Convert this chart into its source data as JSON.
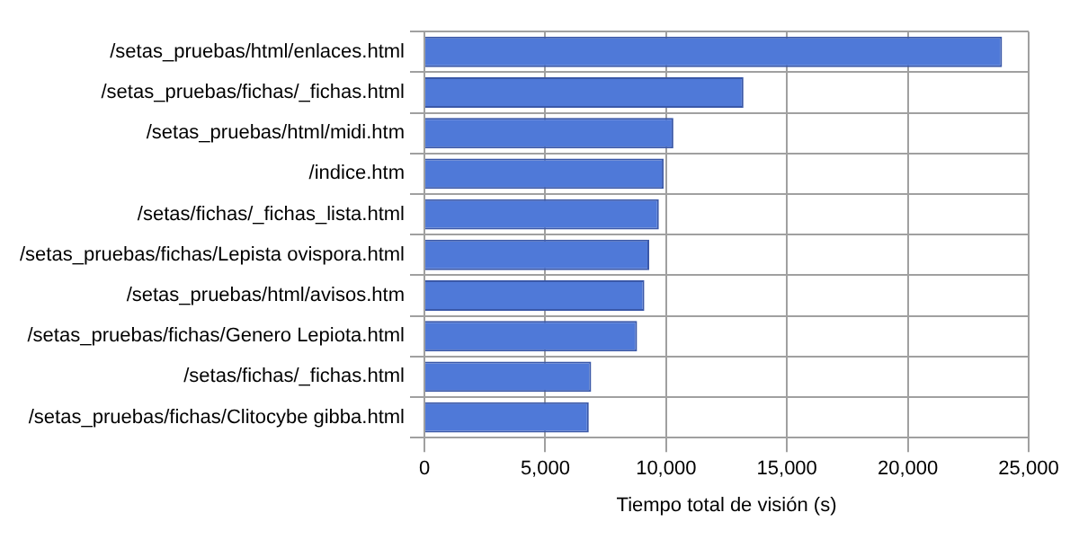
{
  "chart_data": {
    "type": "bar",
    "orientation": "horizontal",
    "xlabel": "Tiempo total de visión (s)",
    "categories": [
      "/setas_pruebas/html/enlaces.html",
      "/setas_pruebas/fichas/_fichas.html",
      "/setas_pruebas/html/midi.htm",
      "/indice.htm",
      "/setas/fichas/_fichas_lista.html",
      "/setas_pruebas/fichas/Lepista ovispora.html",
      "/setas_pruebas/html/avisos.htm",
      "/setas_pruebas/fichas/Genero Lepiota.html",
      "/setas/fichas/_fichas.html",
      "/setas_pruebas/fichas/Clitocybe gibba.html"
    ],
    "values": [
      23900,
      13200,
      10300,
      9900,
      9700,
      9300,
      9100,
      8800,
      6900,
      6800
    ],
    "color": "#4f79d8",
    "xlim": [
      0,
      25000
    ],
    "xticks": [
      {
        "value": 0,
        "label": "0"
      },
      {
        "value": 5000,
        "label": "5,000"
      },
      {
        "value": 10000,
        "label": "10,000"
      },
      {
        "value": 15000,
        "label": "15,000"
      },
      {
        "value": 20000,
        "label": "20,000"
      },
      {
        "value": 25000,
        "label": "25,000"
      }
    ],
    "grid": true,
    "legend": false
  }
}
